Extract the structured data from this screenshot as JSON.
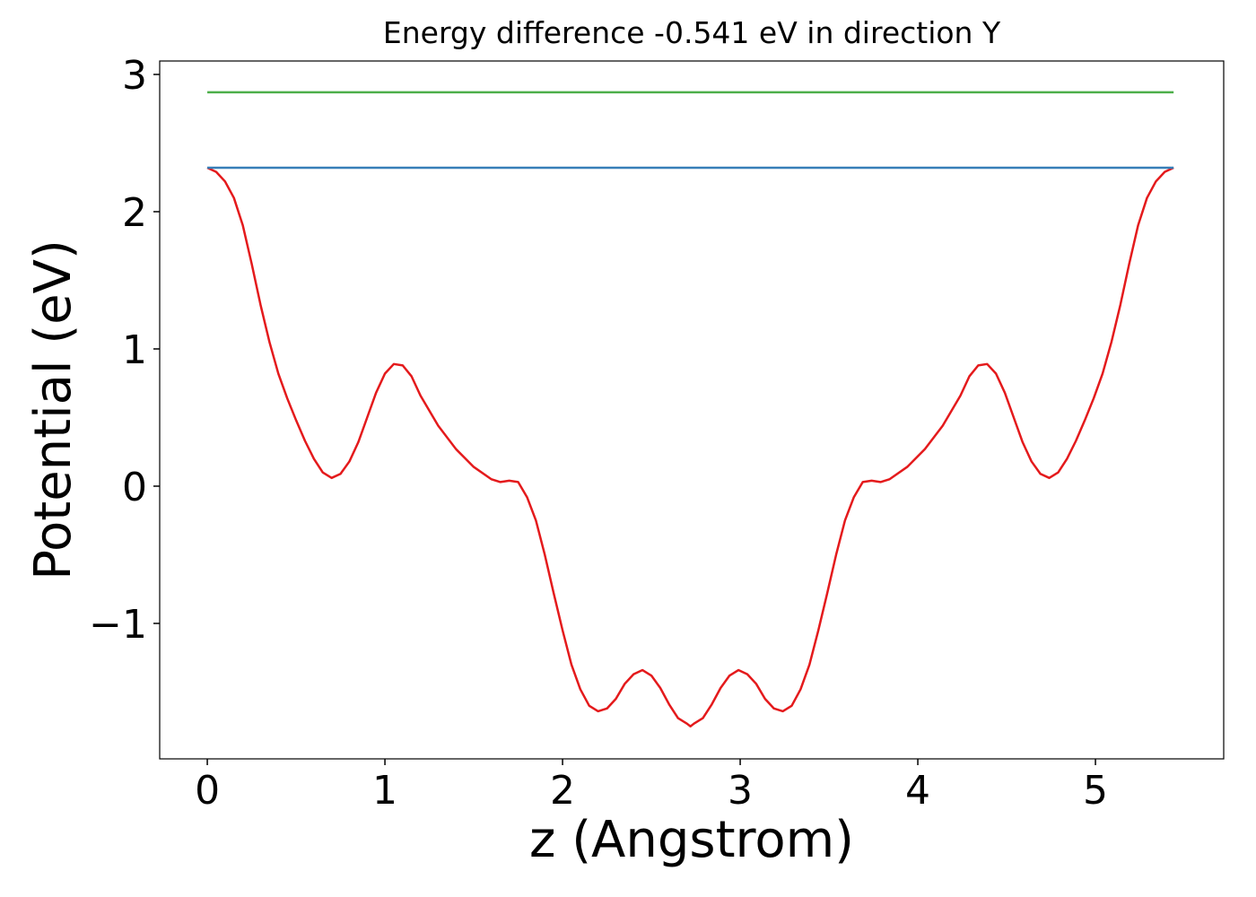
{
  "chart_data": {
    "type": "line",
    "title": "Energy difference -0.541 eV in direction Y",
    "xlabel": "z (Angstrom)",
    "ylabel": "Potential (eV)",
    "xlim": [
      -0.268,
      5.722
    ],
    "ylim": [
      -1.987,
      3.098
    ],
    "xticks": [
      0,
      1,
      2,
      3,
      4,
      5
    ],
    "yticks": [
      {
        "value": -1,
        "label": "−1"
      },
      0,
      1,
      2,
      3
    ],
    "grid": false,
    "series": [
      {
        "color": "#e41a1c",
        "x": [
          0,
          0.05,
          0.1,
          0.15,
          0.2,
          0.25,
          0.3,
          0.35,
          0.4,
          0.45,
          0.5,
          0.55,
          0.6,
          0.65,
          0.7,
          0.75,
          0.8,
          0.85,
          0.9,
          0.95,
          1.0,
          1.05,
          1.1,
          1.15,
          1.2,
          1.3,
          1.4,
          1.5,
          1.6,
          1.65,
          1.7,
          1.75,
          1.8,
          1.85,
          1.9,
          1.95,
          2.0,
          2.05,
          2.1,
          2.15,
          2.2,
          2.25,
          2.3,
          2.35,
          2.4,
          2.45,
          2.5,
          2.55,
          2.6,
          2.65,
          2.7,
          2.72,
          2.74,
          2.79,
          2.84,
          2.89,
          2.94,
          2.99,
          3.04,
          3.09,
          3.14,
          3.19,
          3.24,
          3.29,
          3.34,
          3.39,
          3.44,
          3.49,
          3.54,
          3.59,
          3.64,
          3.69,
          3.74,
          3.79,
          3.84,
          3.94,
          4.04,
          4.14,
          4.24,
          4.29,
          4.34,
          4.39,
          4.44,
          4.49,
          4.54,
          4.59,
          4.64,
          4.69,
          4.74,
          4.79,
          4.84,
          4.89,
          4.94,
          4.99,
          5.04,
          5.09,
          5.14,
          5.19,
          5.24,
          5.29,
          5.34,
          5.39,
          5.44
        ],
        "values": [
          2.32,
          2.29,
          2.22,
          2.1,
          1.9,
          1.62,
          1.32,
          1.05,
          0.82,
          0.64,
          0.48,
          0.33,
          0.2,
          0.1,
          0.06,
          0.09,
          0.18,
          0.32,
          0.5,
          0.68,
          0.82,
          0.89,
          0.88,
          0.8,
          0.66,
          0.44,
          0.27,
          0.14,
          0.05,
          0.03,
          0.04,
          0.03,
          -0.08,
          -0.25,
          -0.5,
          -0.78,
          -1.05,
          -1.3,
          -1.48,
          -1.6,
          -1.64,
          -1.62,
          -1.55,
          -1.44,
          -1.37,
          -1.34,
          -1.38,
          -1.47,
          -1.59,
          -1.69,
          -1.73,
          -1.75,
          -1.73,
          -1.69,
          -1.59,
          -1.47,
          -1.38,
          -1.34,
          -1.37,
          -1.44,
          -1.55,
          -1.62,
          -1.64,
          -1.6,
          -1.48,
          -1.3,
          -1.05,
          -0.78,
          -0.5,
          -0.25,
          -0.08,
          0.03,
          0.04,
          0.03,
          0.05,
          0.14,
          0.27,
          0.44,
          0.66,
          0.8,
          0.88,
          0.89,
          0.82,
          0.68,
          0.5,
          0.32,
          0.18,
          0.09,
          0.06,
          0.1,
          0.2,
          0.33,
          0.48,
          0.64,
          0.82,
          1.05,
          1.32,
          1.62,
          1.9,
          2.1,
          2.22,
          2.29,
          2.32
        ]
      },
      {
        "color": "#377eb8",
        "x": [
          0,
          5.44
        ],
        "values": [
          2.32,
          2.32
        ]
      },
      {
        "color": "#4daf4a",
        "x": [
          0,
          5.44
        ],
        "values": [
          2.87,
          2.87
        ]
      }
    ]
  }
}
